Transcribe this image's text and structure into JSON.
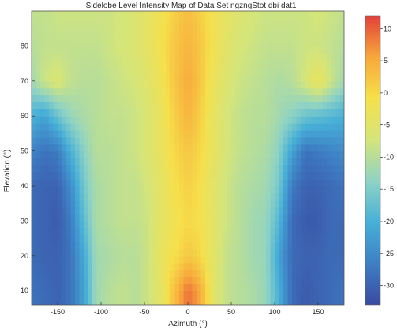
{
  "chart_data": {
    "type": "heatmap",
    "title": "Sidelobe Level Intensity Map of Data Set ngzngStot dbi dat1",
    "xlabel": "Azimuth (°)",
    "ylabel": "Elevation (°)",
    "xlim": [
      -180,
      180
    ],
    "ylim": [
      6,
      90
    ],
    "x_ticks": [
      -150,
      -100,
      -50,
      0,
      50,
      100,
      150
    ],
    "x_tick_labels": [
      "-150",
      "-100",
      "-50",
      "0",
      "50",
      "100",
      "150"
    ],
    "y_ticks": [
      10,
      20,
      30,
      40,
      50,
      60,
      70,
      80
    ],
    "y_tick_labels": [
      "10",
      "20",
      "30",
      "40",
      "50",
      "60",
      "70",
      "80"
    ],
    "colorbar": {
      "range": [
        -33,
        12
      ],
      "ticks": [
        10,
        5,
        0,
        -5,
        -10,
        -15,
        -20,
        -25,
        -30
      ],
      "tick_labels": [
        "10",
        "5",
        "0",
        "-5",
        "-10",
        "-15",
        "-20",
        "-25",
        "-30"
      ],
      "colormap": [
        "#3a4ba0",
        "#3e7fc4",
        "#47b0d8",
        "#8fd3c4",
        "#d4e57a",
        "#f6e04b",
        "#f7a73b",
        "#e3403a"
      ]
    },
    "columns": {
      "azimuth": [
        -180,
        -165,
        -150,
        -135,
        -120,
        -105,
        -90,
        -75,
        -60,
        -45,
        -30,
        -15,
        0,
        15,
        30,
        45,
        60,
        75,
        90,
        105,
        120,
        135,
        150,
        165,
        180
      ],
      "elevation": [
        10,
        20,
        30,
        40,
        50,
        60,
        70,
        80,
        90
      ]
    },
    "values": [
      [
        -28,
        -29,
        -30,
        -28,
        -22,
        -12,
        -10,
        -9,
        -10,
        -8,
        -4,
        3,
        9,
        5,
        -5,
        -9,
        -10,
        -11,
        -13,
        -20,
        -29,
        -31,
        -30,
        -29,
        -28
      ],
      [
        -29,
        -30,
        -30,
        -28,
        -21,
        -12,
        -11,
        -10,
        -10,
        -8,
        -3,
        -1,
        2,
        0,
        -5,
        -9,
        -10,
        -12,
        -13,
        -22,
        -29,
        -30,
        -30,
        -29,
        -29
      ],
      [
        -29,
        -30,
        -31,
        -27,
        -18,
        -11,
        -10,
        -9,
        -9,
        -8,
        -4,
        -2,
        0,
        -1,
        -5,
        -8,
        -10,
        -12,
        -13,
        -19,
        -29,
        -31,
        -31,
        -29,
        -29
      ],
      [
        -29,
        -30,
        -30,
        -25,
        -16,
        -11,
        -10,
        -9,
        -9,
        -7,
        -4,
        -1,
        1,
        -1,
        -5,
        -8,
        -10,
        -11,
        -12,
        -16,
        -27,
        -30,
        -30,
        -29,
        -28
      ],
      [
        -26,
        -28,
        -27,
        -20,
        -14,
        -10,
        -10,
        -9,
        -8,
        -6,
        -3,
        0,
        2,
        0,
        -4,
        -7,
        -9,
        -10,
        -11,
        -14,
        -22,
        -28,
        -27,
        -26,
        -25
      ],
      [
        -20,
        -22,
        -17,
        -13,
        -11,
        -10,
        -9,
        -9,
        -8,
        -6,
        -3,
        1,
        4,
        1,
        -4,
        -7,
        -9,
        -10,
        -10,
        -12,
        -14,
        -17,
        -18,
        -19,
        -20
      ],
      [
        -12,
        -8,
        -6,
        -9,
        -10,
        -10,
        -9,
        -8,
        -7,
        -5,
        -2,
        2,
        5,
        2,
        -3,
        -6,
        -8,
        -9,
        -10,
        -11,
        -10,
        -7,
        -3,
        -8,
        -12
      ],
      [
        -10,
        -9,
        -9,
        -9,
        -9,
        -9,
        -8,
        -7,
        -6,
        -4,
        -1,
        2,
        4,
        2,
        -2,
        -5,
        -7,
        -8,
        -9,
        -9,
        -9,
        -8,
        -8,
        -9,
        -10
      ],
      [
        -9,
        -9,
        -8,
        -8,
        -8,
        -8,
        -8,
        -7,
        -6,
        -4,
        -2,
        1,
        3,
        1,
        -2,
        -4,
        -6,
        -7,
        -8,
        -8,
        -8,
        -8,
        -7,
        -8,
        -9
      ]
    ]
  }
}
